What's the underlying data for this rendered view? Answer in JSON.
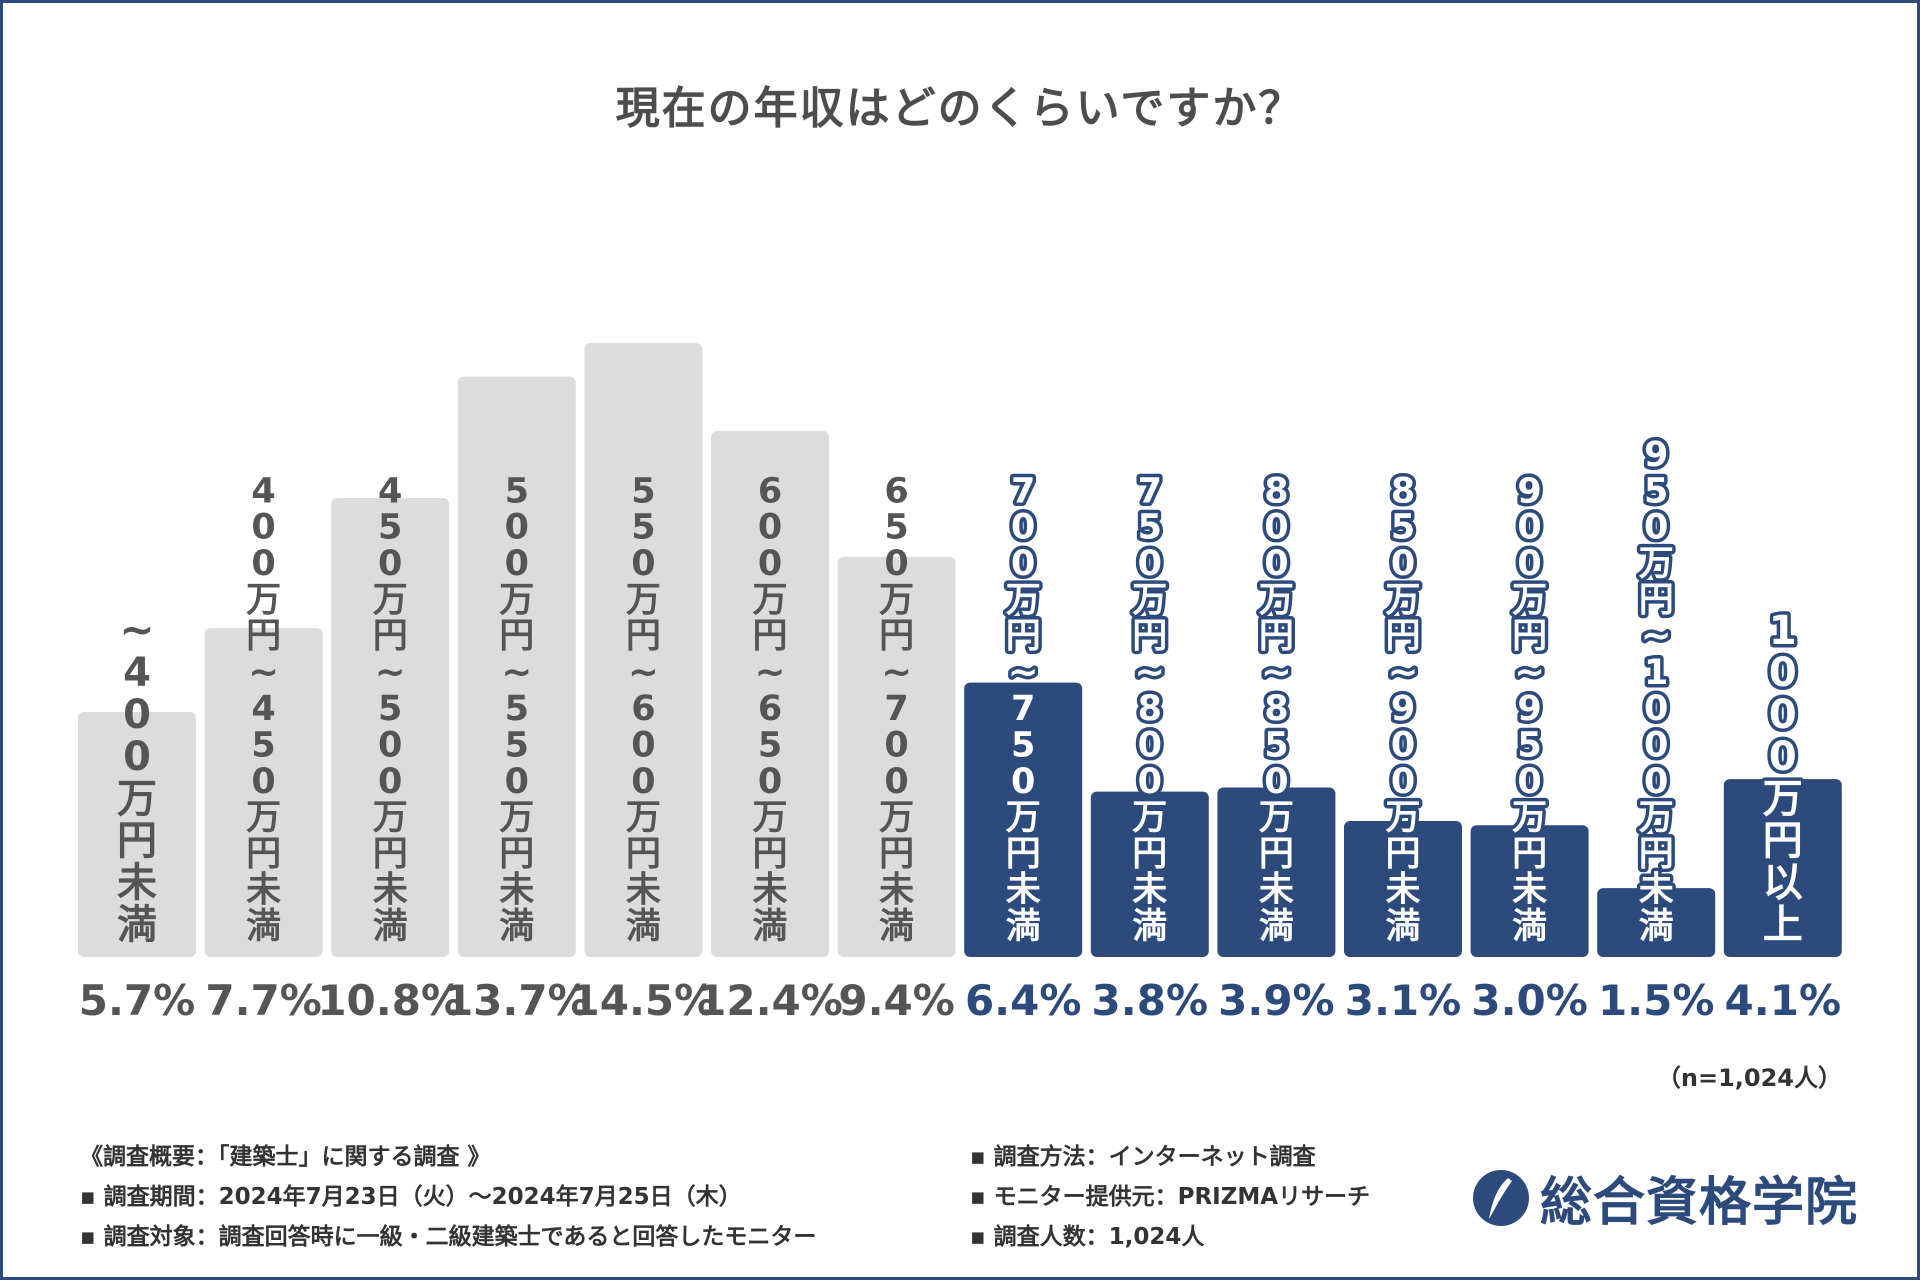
{
  "title": "現在の年収はどのくらいですか？",
  "chart_data": {
    "type": "bar",
    "title": "現在の年収はどのくらいですか？",
    "categories": [
      "～400万円未満",
      "400万円～450万円未満",
      "450万円～500万円未満",
      "500万円～550万円未満",
      "550万円～600万円未満",
      "600万円～650万円未満",
      "650万円～700万円未満",
      "700万円～750万円未満",
      "750万円～800万円未満",
      "800万円～850万円未満",
      "850万円～900万円未満",
      "900万円～950万円未満",
      "950万円～1000万円未満",
      "1000万円以上"
    ],
    "values": [
      5.7,
      7.7,
      10.8,
      13.7,
      14.5,
      12.4,
      9.4,
      6.4,
      3.8,
      3.9,
      3.1,
      3.0,
      1.5,
      4.1
    ],
    "value_labels": [
      "5.7%",
      "7.7%",
      "10.8%",
      "13.7%",
      "14.5%",
      "12.4%",
      "9.4%",
      "6.4%",
      "3.8%",
      "3.9%",
      "3.1%",
      "3.0%",
      "1.5%",
      "4.1%"
    ],
    "highlight": [
      false,
      false,
      false,
      false,
      false,
      false,
      false,
      true,
      true,
      true,
      true,
      true,
      true,
      true
    ],
    "unit": "%",
    "ylim": [
      0,
      14.5
    ],
    "colors": {
      "base_bar": "#dcdcdc",
      "base_text": "#555555",
      "highlight_bar": "#2d4a7c",
      "highlight_text": "#2d4a7c"
    }
  },
  "sample_size": "（n=1,024人）",
  "survey": {
    "overview": "《調査概要：「建築士」に関する調査 》",
    "period": "▪ 調査期間：2024年7月23日（火）～2024年7月25日（木）",
    "target": "▪ 調査対象：調査回答時に一級・二級建築士であると回答したモニター",
    "method": "▪ 調査方法：インターネット調査",
    "provider": "▪ モニター提供元：PRIZMAリサーチ",
    "count": "▪ 調査人数：1,024人"
  },
  "brand": {
    "name": "総合資格学院",
    "icon": "brush-stroke-logo-icon",
    "color": "#2d4a7c"
  }
}
